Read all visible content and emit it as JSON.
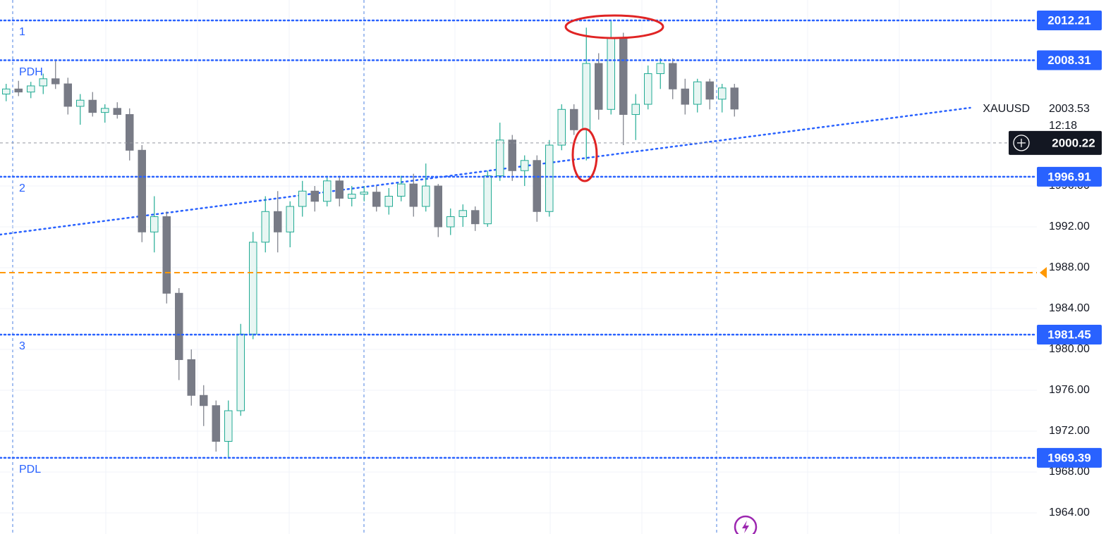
{
  "chart_data": {
    "type": "candlestick",
    "symbol": "XAUUSD",
    "categories": [
      null,
      null,
      null,
      null,
      null,
      null,
      null,
      null,
      null,
      null,
      null,
      null,
      null,
      null,
      null,
      null,
      null,
      null,
      null,
      null,
      null,
      null,
      null,
      null,
      null,
      null,
      null,
      null,
      null,
      null,
      null,
      null,
      null,
      null,
      null,
      null,
      null,
      null,
      null,
      null,
      null,
      null,
      null,
      null,
      null,
      null,
      null,
      null,
      null,
      null,
      null,
      null,
      null,
      null,
      null,
      null,
      null,
      null,
      null,
      null
    ],
    "xlim": [
      -0.5,
      83.5
    ],
    "open": [
      2005.0,
      2005.5,
      2005.2,
      2005.8,
      2006.5,
      2006.0,
      2003.8,
      2004.4,
      2003.2,
      2003.6,
      2003.0,
      1999.5,
      1991.5,
      1993.0,
      1985.5,
      1979.0,
      1975.5,
      1974.5,
      1971.0,
      1974.0,
      1981.5,
      1990.5,
      1993.5,
      1991.5,
      1994.0,
      1995.5,
      1994.5,
      1996.5,
      1994.8,
      1995.2,
      1995.4,
      1994.0,
      1995.0,
      1996.2,
      1994.0,
      1996.0,
      1992.0,
      1993.0,
      1993.6,
      1992.3,
      1997.0,
      2000.5,
      1997.5,
      1998.5,
      1993.5,
      2000.0,
      2003.5,
      2001.5,
      2008.0,
      2003.5,
      2010.5,
      2003.0,
      2004.0,
      2007.0,
      2008.0,
      2005.5,
      2004.0,
      2006.2,
      2004.5,
      2005.6
    ],
    "high": [
      2006.0,
      2006.3,
      2006.2,
      2007.0,
      2008.3,
      2006.6,
      2005.0,
      2005.2,
      2004.0,
      2004.2,
      2003.6,
      2000.0,
      1995.0,
      1993.5,
      1986.0,
      1980.0,
      1976.5,
      1975.0,
      1975.0,
      1982.5,
      1991.5,
      1995.0,
      1995.5,
      1994.5,
      1996.5,
      1996.0,
      1997.0,
      1997.0,
      1996.0,
      1996.0,
      1996.0,
      1995.8,
      1997.0,
      1997.2,
      1998.2,
      1996.2,
      1993.8,
      1994.2,
      1994.0,
      1997.5,
      2002.2,
      2001.0,
      1999.0,
      1999.0,
      2000.5,
      2004.0,
      2004.0,
      2011.5,
      2009.0,
      2012.21,
      2011.0,
      2005.0,
      2007.8,
      2008.5,
      2008.5,
      2006.5,
      2006.5,
      2006.5,
      2006.0,
      2006.0
    ],
    "low": [
      2004.3,
      2004.8,
      2004.6,
      2005.0,
      2005.5,
      2003.0,
      2002.0,
      2002.8,
      2002.2,
      2002.6,
      1998.5,
      1990.5,
      1989.5,
      1984.5,
      1977.0,
      1974.5,
      1972.5,
      1970.0,
      1969.4,
      1973.5,
      1981.0,
      1989.5,
      1989.5,
      1990.0,
      1993.0,
      1993.5,
      1994.0,
      1994.0,
      1994.0,
      1994.5,
      1993.5,
      1993.2,
      1994.5,
      1993.0,
      1993.5,
      1991.0,
      1991.2,
      1992.0,
      1991.6,
      1992.0,
      1996.5,
      1996.5,
      1996.0,
      1992.5,
      1993.0,
      1999.5,
      2001.0,
      1998.5,
      2002.5,
      2003.0,
      2000.0,
      2000.5,
      2003.5,
      2005.5,
      2004.5,
      2003.0,
      2003.2,
      2003.5,
      2003.2,
      2002.8
    ],
    "close": [
      2005.5,
      2005.2,
      2005.8,
      2006.5,
      2006.0,
      2003.8,
      2004.4,
      2003.2,
      2003.6,
      2003.0,
      1999.5,
      1991.5,
      1993.0,
      1985.5,
      1979.0,
      1975.5,
      1974.5,
      1971.0,
      1974.0,
      1981.5,
      1990.5,
      1993.5,
      1991.5,
      1994.0,
      1995.5,
      1994.5,
      1996.5,
      1994.8,
      1995.2,
      1995.4,
      1994.0,
      1995.0,
      1996.2,
      1994.0,
      1996.0,
      1992.0,
      1993.0,
      1993.6,
      1992.3,
      1997.0,
      2000.5,
      1997.5,
      1998.5,
      1993.5,
      2000.0,
      2003.5,
      2001.5,
      2008.0,
      2003.5,
      2010.5,
      2003.0,
      2004.0,
      2007.0,
      2008.0,
      2005.5,
      2004.0,
      2006.2,
      2004.5,
      2005.6,
      2003.53
    ],
    "up_color": "#22ab94",
    "down_color": "#787b86",
    "ylim": [
      1961.93,
      2014.21
    ],
    "yticks": [
      {
        "value": 1964,
        "label": "1964.00"
      },
      {
        "value": 1968,
        "label": "1968.00"
      },
      {
        "value": 1972,
        "label": "1972.00"
      },
      {
        "value": 1976,
        "label": "1976.00"
      },
      {
        "value": 1980,
        "label": "1980.00"
      },
      {
        "value": 1984,
        "label": "1984.00"
      },
      {
        "value": 1988,
        "label": "1988.00"
      },
      {
        "value": 1992,
        "label": "1992.00"
      },
      {
        "value": 1996,
        "label": "1996.00"
      }
    ],
    "grid": true,
    "levels": [
      {
        "label": "1",
        "value": 2012.21
      },
      {
        "label": "PDH",
        "value": 2008.31
      },
      {
        "label": "2",
        "value": 1996.91
      },
      {
        "label": "3",
        "value": 1981.45
      },
      {
        "label": "PDL",
        "value": 1969.39
      }
    ],
    "level_color": "#2962ff",
    "trendline": {
      "x": [
        -0.5,
        78.1
      ],
      "values": [
        1991.24,
        2003.66
      ]
    },
    "alert_line": {
      "value": 1987.52,
      "color": "#ff9800"
    },
    "last_price": {
      "value": 2003.53,
      "countdown": "12:18"
    },
    "crosshair_price": 2000.22
  }
}
